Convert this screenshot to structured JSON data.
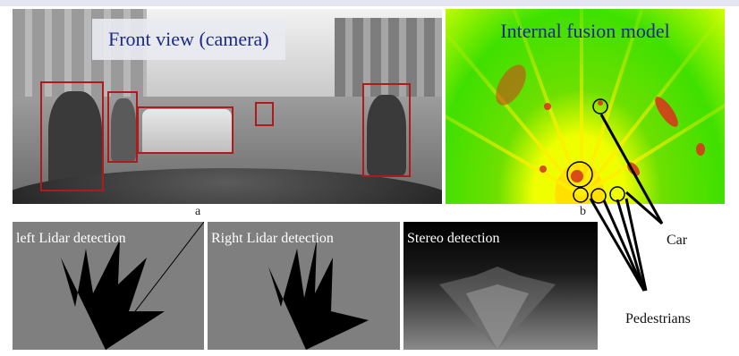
{
  "figure": {
    "panel_a": {
      "title": "Front view (camera)",
      "sublabel": "a"
    },
    "panel_b": {
      "title": "Internal fusion model",
      "sublabel": "b"
    },
    "bottom_panels": [
      {
        "label": "left Lidar detection"
      },
      {
        "label": "Right Lidar detection"
      },
      {
        "label": "Stereo  detection"
      }
    ],
    "annotations": {
      "car": "Car",
      "pedestrians": "Pedestrians"
    }
  }
}
